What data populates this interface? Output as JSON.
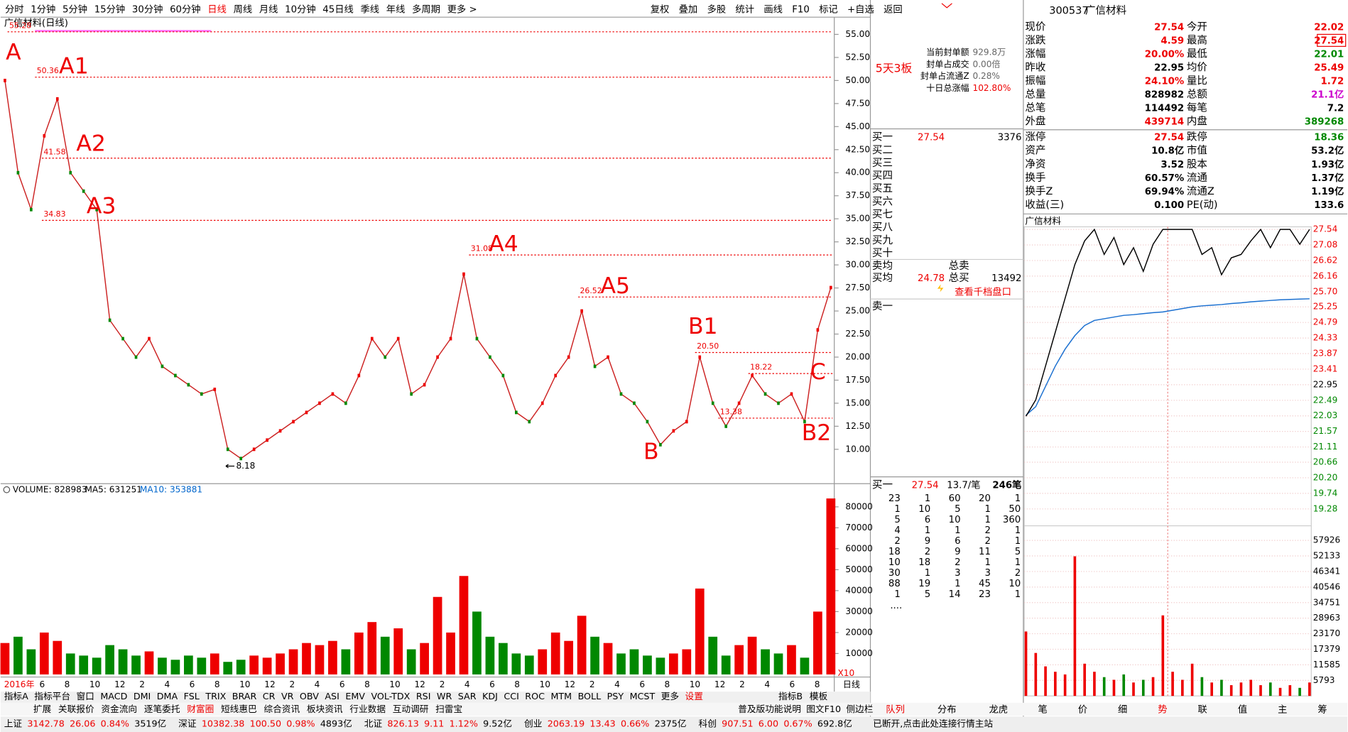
{
  "toolbar": {
    "periods": [
      "分时",
      "1分钟",
      "5分钟",
      "15分钟",
      "30分钟",
      "60分钟",
      "日线",
      "周线",
      "月线",
      "10分钟",
      "45日线",
      "季线",
      "年线",
      "多周期",
      "更多 >"
    ],
    "active": 6,
    "buttons": [
      "复权",
      "叠加",
      "多股",
      "统计",
      "画线",
      "F10",
      "标记",
      "+自选",
      "返回"
    ]
  },
  "kline": {
    "title": "广信材料(日线)",
    "ylim": [
      6.55,
      56.68
    ],
    "yticks": [
      {
        "value": 55,
        "label": "55.00"
      },
      {
        "value": 52.5,
        "label": "52.50"
      },
      {
        "value": 50,
        "label": "50.00"
      },
      {
        "value": 47.5,
        "label": "47.50"
      },
      {
        "value": 45,
        "label": "45.00"
      },
      {
        "value": 42.5,
        "label": "42.50"
      },
      {
        "value": 40,
        "label": "40.00"
      },
      {
        "value": 37.5,
        "label": "37.50"
      },
      {
        "value": 35,
        "label": "35.00"
      },
      {
        "value": 32.5,
        "label": "32.50"
      },
      {
        "value": 30,
        "label": "30.00"
      },
      {
        "value": 27.5,
        "label": "27.50"
      },
      {
        "value": 25,
        "label": "25.00"
      },
      {
        "value": 22.5,
        "label": "22.50"
      },
      {
        "value": 20,
        "label": "20.00"
      },
      {
        "value": 17.5,
        "label": "17.50"
      },
      {
        "value": 15,
        "label": "15.00"
      },
      {
        "value": 12.5,
        "label": "12.50"
      },
      {
        "value": 10,
        "label": "10.00"
      }
    ],
    "closes": [
      50,
      40,
      36,
      44,
      48,
      40,
      38,
      36,
      24,
      22,
      20,
      22,
      19,
      18,
      17,
      16,
      16.5,
      10,
      9,
      10,
      11,
      12,
      13,
      14,
      15,
      16,
      15,
      18,
      22,
      20,
      22,
      16,
      17,
      20,
      22,
      29,
      22,
      20,
      18,
      14,
      13,
      15,
      18,
      20,
      25,
      19,
      20,
      16,
      15,
      13,
      10.5,
      12,
      13,
      20,
      15,
      12.5,
      15,
      18,
      16,
      15,
      16,
      13,
      22.95,
      27.54
    ],
    "levels": [
      {
        "value": 55.28
      },
      {
        "value": 50.36
      },
      {
        "value": 41.58
      },
      {
        "value": 34.83
      },
      {
        "value": 31.08
      },
      {
        "value": 26.52
      },
      {
        "value": 20.5,
        "value_label": "20.50"
      },
      {
        "value": 18.22
      },
      {
        "value": 13.38
      }
    ],
    "low": 8.18,
    "markers": [
      "A",
      "A1",
      "A2",
      "A3",
      "A4",
      "A5",
      "B",
      "B1",
      "B2",
      "C"
    ],
    "xlabels": [
      "2016年",
      "6",
      "8",
      "10",
      "12",
      "2",
      "4",
      "6",
      "8",
      "10",
      "12",
      "2",
      "4",
      "6",
      "8",
      "10",
      "12",
      "2",
      "4",
      "6",
      "8",
      "10",
      "12",
      "2",
      "4",
      "6",
      "8",
      "10",
      "12",
      "2",
      "4",
      "6",
      "8"
    ],
    "period": "日线"
  },
  "volume": {
    "title": "VOLUME: 828983",
    "ma5": "MA5: 631251",
    "ma10": "MA10: 353881",
    "scale": "X10",
    "ylim": [
      0,
      89000
    ],
    "yticks": [
      80000,
      70000,
      60000,
      50000,
      40000,
      30000,
      20000,
      10000
    ],
    "values": [
      15000,
      18000,
      12000,
      20000,
      16000,
      10000,
      9000,
      8000,
      14000,
      12000,
      9000,
      11000,
      8000,
      7000,
      9000,
      8000,
      10000,
      6000,
      7000,
      9000,
      8000,
      10000,
      12000,
      15000,
      14000,
      16000,
      12000,
      20000,
      25000,
      18000,
      22000,
      12000,
      15000,
      37000,
      20000,
      47000,
      30000,
      18000,
      15000,
      10000,
      9000,
      12000,
      20000,
      16000,
      28000,
      18000,
      15000,
      10000,
      12000,
      9000,
      8000,
      10000,
      12000,
      41000,
      18000,
      9000,
      14000,
      18000,
      12000,
      10000,
      14000,
      8000,
      30000,
      84000
    ]
  },
  "indicators": {
    "items": [
      "指标A",
      "指标平台",
      "窗口",
      "MACD",
      "DMI",
      "DMA",
      "FSL",
      "TRIX",
      "BRAR",
      "CR",
      "VR",
      "OBV",
      "ASI",
      "EMV",
      "VOL-TDX",
      "RSI",
      "WR",
      "SAR",
      "KDJ",
      "CCI",
      "ROC",
      "MTM",
      "BOLL",
      "PSY",
      "MCST",
      "更多",
      "设置"
    ],
    "right": [
      "指标B",
      "模板"
    ]
  },
  "extras": {
    "items": [
      "扩展",
      "关联报价",
      "资金流向",
      "逐笔委托",
      "财富圈",
      "短线惠巴",
      "综合资讯",
      "板块资讯",
      "行业数据",
      "互动调研",
      "扫雷宝"
    ],
    "right": [
      "普及版功能说明",
      "图文F10",
      "侧边栏"
    ]
  },
  "status": {
    "indices": [
      [
        "上证",
        "3142.78",
        "26.06",
        "0.84%",
        "3519亿"
      ],
      [
        "深证",
        "10382.38",
        "100.50",
        "0.98%",
        "4893亿"
      ],
      [
        "北证",
        "826.13",
        "9.11",
        "1.12%",
        "9.52亿"
      ],
      [
        "创业",
        "2063.19",
        "13.43",
        "0.66%",
        "2375亿"
      ],
      [
        "科创",
        "907.51",
        "6.00",
        "0.67%",
        "692.8亿"
      ]
    ],
    "message": "已断开,点击此处连接行情主站"
  },
  "seal": {
    "tag": "5天3板",
    "rows": [
      [
        "当前封单额",
        "929.8万"
      ],
      [
        "封单占成交",
        "0.00倍"
      ],
      [
        "封单占流通Z",
        "0.28%"
      ],
      [
        "十日总涨幅",
        "102.80%"
      ]
    ]
  },
  "book": {
    "bid_levels": [
      "买一",
      "买二",
      "买三",
      "买四",
      "买五",
      "买六",
      "买七",
      "买八",
      "买九",
      "买十"
    ],
    "bid1_price": "27.54",
    "bid1_volume": "3376",
    "sell_avg": "卖均",
    "total_sell": "总卖",
    "buy_avg": "买均",
    "buy_avg_price": "24.78",
    "total_buy": "总买",
    "total_buy_volume": "13492",
    "depth_link": "查看千档盘口",
    "ask1": "卖一"
  },
  "queue": {
    "label": "买一",
    "price": "27.54",
    "per": "13.7/笔",
    "count": "246笔",
    "rows": [
      [
        "23",
        "1",
        "60",
        "20",
        "1"
      ],
      [
        "1",
        "10",
        "5",
        "1",
        "50"
      ],
      [
        "5",
        "6",
        "10",
        "1",
        "360"
      ],
      [
        "4",
        "1",
        "1",
        "2",
        "1"
      ],
      [
        "2",
        "9",
        "6",
        "2",
        "1"
      ],
      [
        "18",
        "2",
        "9",
        "11",
        "5"
      ],
      [
        "10",
        "18",
        "2",
        "1",
        "1"
      ],
      [
        "30",
        "1",
        "3",
        "3",
        "2"
      ],
      [
        "88",
        "19",
        "1",
        "45",
        "10"
      ],
      [
        "1",
        "5",
        "14",
        "23",
        "1"
      ]
    ],
    "more": "....",
    "tabs": [
      "队列",
      "分布",
      "龙虎"
    ]
  },
  "quote": {
    "code": "300537",
    "name": "广信材料",
    "rows": [
      [
        "现价",
        "27.54",
        "今开",
        "22.02"
      ],
      [
        "涨跌",
        "4.59",
        "最高",
        "27.54"
      ],
      [
        "涨幅",
        "20.00%",
        "最低",
        "22.01"
      ],
      [
        "昨收",
        "22.95",
        "均价",
        "25.49"
      ],
      [
        "振幅",
        "24.10%",
        "量比",
        "1.72"
      ],
      [
        "总量",
        "828982",
        "总额",
        "21.1亿"
      ],
      [
        "总笔",
        "114492",
        "每笔",
        "7.2"
      ],
      [
        "外盘",
        "439714",
        "内盘",
        "389268"
      ],
      [
        "涨停",
        "27.54",
        "跌停",
        "18.36"
      ],
      [
        "资产",
        "10.8亿",
        "市值",
        "53.2亿"
      ],
      [
        "净资",
        "3.52",
        "股本",
        "1.93亿"
      ],
      [
        "换手",
        "60.57%",
        "流通",
        "1.37亿"
      ],
      [
        "换手Z",
        "69.94%",
        "流通Z",
        "1.19亿"
      ],
      [
        "收益(三)",
        "0.100",
        "PE(动)",
        "133.6"
      ]
    ]
  },
  "intraday": {
    "title": "广信材料",
    "ylim": [
      18.959,
      27.667
    ],
    "yticks": [
      27.54,
      27.08,
      26.62,
      26.16,
      {
        "value": 25.7,
        "label": "25.70"
      },
      25.25,
      24.79,
      24.33,
      23.87,
      23.41,
      22.95,
      22.49,
      22.03,
      21.57,
      21.11,
      20.66,
      {
        "value": 20.2,
        "label": "20.20"
      },
      19.74,
      19.28
    ],
    "price": [
      22.02,
      22.5,
      23.5,
      24.5,
      25.5,
      26.5,
      27.2,
      27.54,
      26.8,
      27.3,
      26.5,
      27.0,
      26.3,
      27.1,
      27.54,
      27.54,
      27.54,
      27.54,
      26.8,
      27.0,
      26.2,
      26.7,
      26.8,
      27.2,
      27.54,
      27.0,
      27.54,
      27.54,
      27.1,
      27.54
    ],
    "avg": [
      22.05,
      22.3,
      22.9,
      23.5,
      24.0,
      24.4,
      24.7,
      24.85,
      24.9,
      24.95,
      25.0,
      25.02,
      25.05,
      25.08,
      25.1,
      25.15,
      25.2,
      25.25,
      25.28,
      25.3,
      25.32,
      25.35,
      25.37,
      25.4,
      25.42,
      25.44,
      25.46,
      25.47,
      25.48,
      25.49
    ],
    "vlim": [
      0,
      63360
    ],
    "vticks": [
      57926,
      52133,
      46341,
      40546,
      34751,
      28963,
      23170,
      17379,
      11585,
      5793
    ],
    "volumes": [
      24000,
      16000,
      11000,
      9000,
      8000,
      52000,
      12000,
      9000,
      7000,
      6000,
      8000,
      5000,
      6000,
      7000,
      30000,
      9000,
      6000,
      12000,
      7000,
      5000,
      6000,
      4000,
      5000,
      6000,
      4000,
      5000,
      3000,
      4000,
      3000,
      5000
    ],
    "tabs": [
      "笔",
      "价",
      "细",
      "势",
      "联",
      "值",
      "主",
      "筹"
    ]
  }
}
